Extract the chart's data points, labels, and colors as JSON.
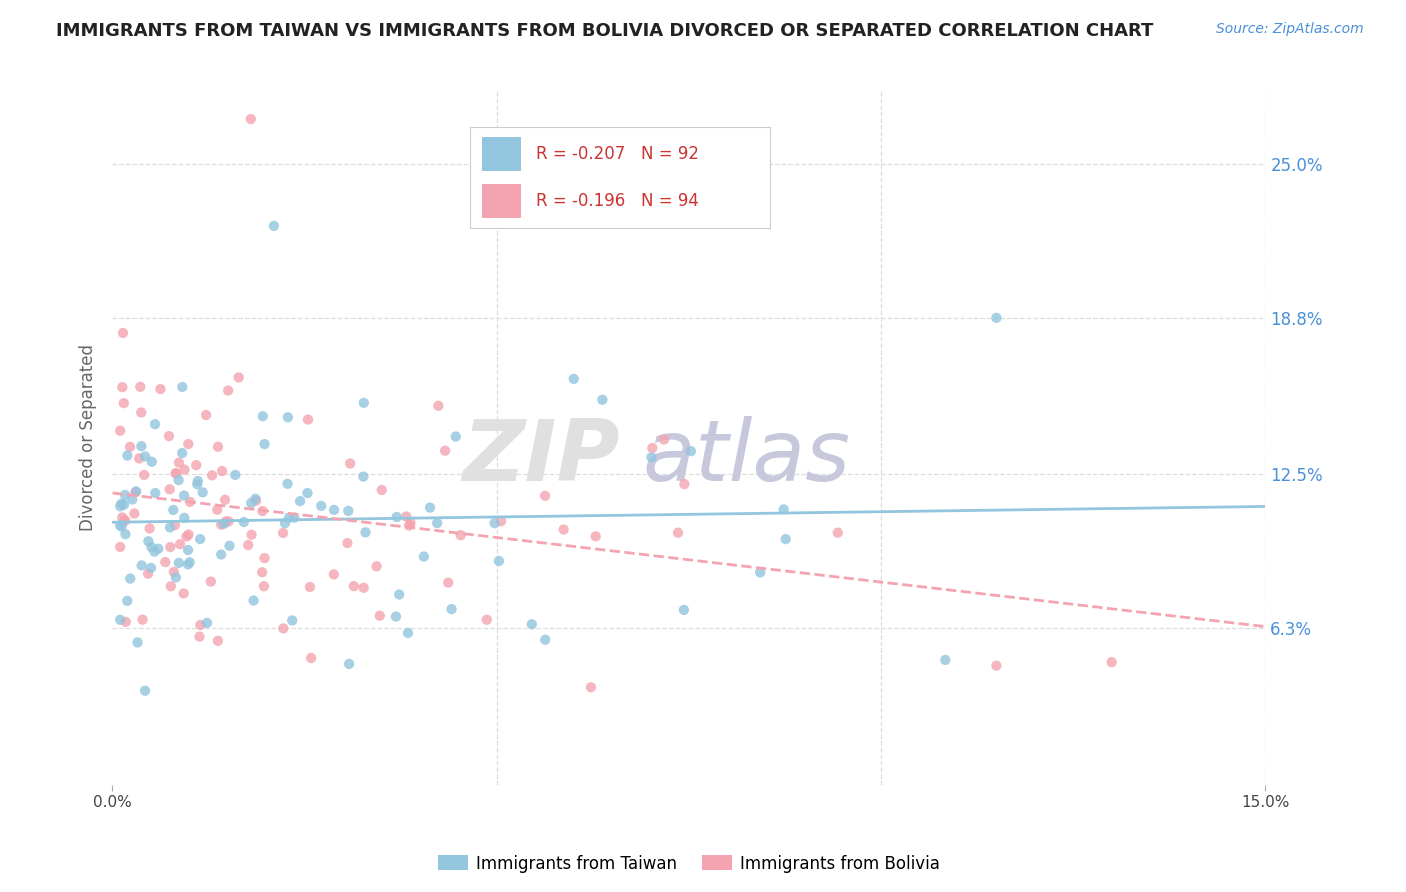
{
  "title": "IMMIGRANTS FROM TAIWAN VS IMMIGRANTS FROM BOLIVIA DIVORCED OR SEPARATED CORRELATION CHART",
  "source": "Source: ZipAtlas.com",
  "ylabel": "Divorced or Separated",
  "xlim": [
    0.0,
    0.15
  ],
  "ylim": [
    0.0,
    0.28
  ],
  "ytick_vals": [
    0.063,
    0.125,
    0.188,
    0.25
  ],
  "ytick_labels": [
    "6.3%",
    "12.5%",
    "18.8%",
    "25.0%"
  ],
  "xtick_vals": [
    0.0,
    0.15
  ],
  "xtick_labels": [
    "0.0%",
    "15.0%"
  ],
  "color_taiwan": "#92c5de",
  "color_bolivia": "#f4a4b0",
  "taiwan_R": -0.207,
  "bolivia_R": -0.196,
  "taiwan_N": 92,
  "bolivia_N": 94,
  "taiwan_label": "Immigrants from Taiwan",
  "bolivia_label": "Immigrants from Bolivia",
  "legend_tw": "R = -0.207   N = 92",
  "legend_bo": "R = -0.196   N = 94",
  "grid_color": "#dddddd",
  "title_color": "#222222",
  "source_color": "#4a90d9",
  "right_axis_color": "#4a90d9"
}
